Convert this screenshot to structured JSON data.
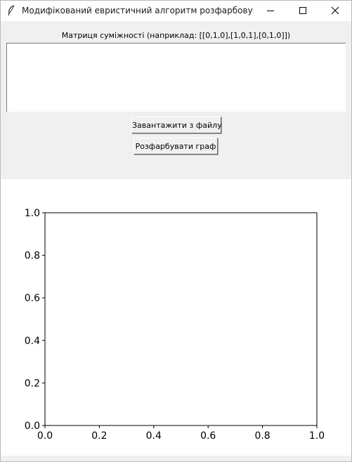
{
  "window": {
    "title": "Модифікований евристичний алгоритм розфарбовування..."
  },
  "form": {
    "matrix_label": "Матриця суміжності (наприклад: [[0,1,0],[1,0,1],[0,1,0]])",
    "matrix_value": "",
    "load_button": "Завантажити з файлу",
    "color_button": "Розфарбувати граф"
  },
  "chart_data": {
    "type": "scatter",
    "x": [],
    "y": [],
    "xlim": [
      0.0,
      1.0
    ],
    "ylim": [
      0.0,
      1.0
    ],
    "xticks": [
      "0.0",
      "0.2",
      "0.4",
      "0.6",
      "0.8",
      "1.0"
    ],
    "yticks": [
      "0.0",
      "0.2",
      "0.4",
      "0.6",
      "0.8",
      "1.0"
    ],
    "grid": false
  }
}
